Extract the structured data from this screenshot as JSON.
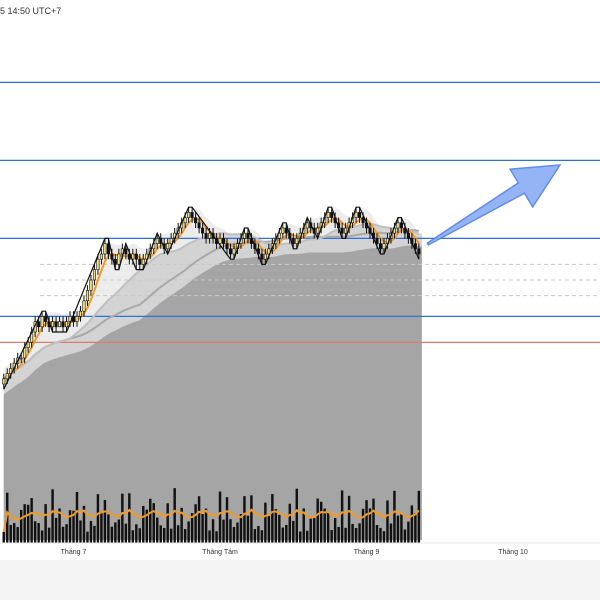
{
  "header": {
    "timestamp": "5 14:50 UTC+7"
  },
  "colors": {
    "background": "#ffffff",
    "level_line": "#2f6fd6",
    "support_line": "#e07a6a",
    "dashed_line": "#c8c8c8",
    "bull_candle": "#f3e37a",
    "bear_candle": "#111111",
    "ma_short": "#f29a27",
    "ma_long": "#a8a8a8",
    "ribbon_light": "#e6e6e6",
    "ribbon_dark": "#9a9a9a",
    "volume_bar": "#111111",
    "volume_ma": "#f29a27",
    "arrow_fill": "#8fb0f5",
    "arrow_stroke": "#5a87e6",
    "zigzag": "#111111"
  },
  "chart_data": {
    "type": "candlestick",
    "x_axis": {
      "ticks": [
        {
          "label": "Tháng 7",
          "index": 20
        },
        {
          "label": "Tháng Tám",
          "index": 62
        },
        {
          "label": "Tháng 9",
          "index": 104
        },
        {
          "label": "Tháng 10",
          "index": 146
        }
      ],
      "total_slots": 172
    },
    "y_range": [
      0,
      100
    ],
    "horizontal_levels": [
      {
        "kind": "level",
        "value": 88
      },
      {
        "kind": "level",
        "value": 73
      },
      {
        "kind": "level",
        "value": 58
      },
      {
        "kind": "level",
        "value": 43
      },
      {
        "kind": "support",
        "value": 38
      },
      {
        "kind": "dashed",
        "value": 53
      },
      {
        "kind": "dashed",
        "value": 50
      },
      {
        "kind": "dashed",
        "value": 47
      }
    ],
    "candles": [
      [
        30,
        31,
        32,
        29
      ],
      [
        31,
        32,
        33,
        30
      ],
      [
        32,
        33,
        34,
        31
      ],
      [
        33,
        34,
        35,
        32
      ],
      [
        34,
        35,
        36,
        33
      ],
      [
        35,
        35,
        36,
        34
      ],
      [
        35,
        37,
        38,
        34
      ],
      [
        37,
        38,
        39,
        36
      ],
      [
        38,
        40,
        41,
        37
      ],
      [
        40,
        42,
        43,
        39
      ],
      [
        42,
        41,
        43,
        40
      ],
      [
        41,
        43,
        44,
        40
      ],
      [
        43,
        42,
        44,
        41
      ],
      [
        42,
        41,
        43,
        40
      ],
      [
        41,
        42,
        43,
        40
      ],
      [
        42,
        41,
        43,
        40
      ],
      [
        41,
        42,
        43,
        41
      ],
      [
        42,
        41,
        43,
        40
      ],
      [
        41,
        42,
        43,
        40
      ],
      [
        42,
        43,
        44,
        41
      ],
      [
        43,
        42,
        44,
        41
      ],
      [
        42,
        43,
        44,
        41
      ],
      [
        43,
        44,
        45,
        42
      ],
      [
        44,
        46,
        47,
        43
      ],
      [
        46,
        48,
        49,
        45
      ],
      [
        48,
        50,
        51,
        47
      ],
      [
        50,
        52,
        53,
        49
      ],
      [
        52,
        54,
        55,
        51
      ],
      [
        54,
        55,
        56,
        53
      ],
      [
        55,
        57,
        58,
        54
      ],
      [
        57,
        55,
        58,
        54
      ],
      [
        55,
        54,
        56,
        53
      ],
      [
        54,
        53,
        55,
        52
      ],
      [
        53,
        55,
        56,
        52
      ],
      [
        55,
        56,
        57,
        54
      ],
      [
        56,
        55,
        57,
        54
      ],
      [
        55,
        54,
        56,
        53
      ],
      [
        54,
        55,
        56,
        53
      ],
      [
        55,
        54,
        56,
        52
      ],
      [
        54,
        53,
        55,
        52
      ],
      [
        53,
        54,
        55,
        52
      ],
      [
        54,
        55,
        56,
        53
      ],
      [
        55,
        56,
        57,
        54
      ],
      [
        56,
        57,
        58,
        55
      ],
      [
        57,
        58,
        59,
        56
      ],
      [
        58,
        57,
        59,
        56
      ],
      [
        57,
        56,
        58,
        55
      ],
      [
        56,
        57,
        58,
        55
      ],
      [
        57,
        58,
        59,
        56
      ],
      [
        58,
        59,
        60,
        57
      ],
      [
        59,
        60,
        61,
        58
      ],
      [
        60,
        61,
        62,
        59
      ],
      [
        61,
        62,
        63,
        60
      ],
      [
        62,
        63,
        64,
        61
      ],
      [
        63,
        62,
        64,
        61
      ],
      [
        62,
        61,
        63,
        60
      ],
      [
        61,
        60,
        62,
        59
      ],
      [
        60,
        59,
        61,
        58
      ],
      [
        59,
        58,
        60,
        57
      ],
      [
        58,
        59,
        60,
        57
      ],
      [
        59,
        58,
        60,
        57
      ],
      [
        58,
        57,
        59,
        56
      ],
      [
        57,
        58,
        59,
        56
      ],
      [
        58,
        57,
        59,
        56
      ],
      [
        57,
        56,
        58,
        55
      ],
      [
        56,
        55,
        57,
        54
      ],
      [
        55,
        56,
        57,
        54
      ],
      [
        56,
        57,
        58,
        55
      ],
      [
        57,
        58,
        59,
        56
      ],
      [
        58,
        59,
        60,
        57
      ],
      [
        59,
        58,
        60,
        57
      ],
      [
        58,
        57,
        59,
        56
      ],
      [
        57,
        56,
        58,
        55
      ],
      [
        56,
        55,
        57,
        54
      ],
      [
        55,
        54,
        56,
        53
      ],
      [
        54,
        55,
        56,
        53
      ],
      [
        55,
        56,
        57,
        54
      ],
      [
        56,
        57,
        58,
        55
      ],
      [
        57,
        58,
        59,
        56
      ],
      [
        58,
        59,
        60,
        57
      ],
      [
        59,
        60,
        61,
        58
      ],
      [
        60,
        59,
        61,
        58
      ],
      [
        59,
        58,
        60,
        57
      ],
      [
        58,
        57,
        59,
        56
      ],
      [
        57,
        58,
        59,
        56
      ],
      [
        58,
        59,
        60,
        57
      ],
      [
        59,
        60,
        61,
        58
      ],
      [
        60,
        61,
        62,
        59
      ],
      [
        61,
        60,
        62,
        59
      ],
      [
        60,
        59,
        61,
        58
      ],
      [
        59,
        60,
        61,
        58
      ],
      [
        60,
        61,
        62,
        59
      ],
      [
        61,
        62,
        63,
        60
      ],
      [
        62,
        63,
        64,
        61
      ],
      [
        63,
        62,
        64,
        61
      ],
      [
        62,
        61,
        63,
        60
      ],
      [
        61,
        60,
        62,
        59
      ],
      [
        60,
        59,
        61,
        58
      ],
      [
        59,
        60,
        61,
        58
      ],
      [
        60,
        61,
        62,
        59
      ],
      [
        61,
        62,
        63,
        60
      ],
      [
        62,
        63,
        64,
        61
      ],
      [
        63,
        62,
        64,
        61
      ],
      [
        62,
        61,
        63,
        60
      ],
      [
        61,
        60,
        62,
        59
      ],
      [
        60,
        59,
        61,
        58
      ],
      [
        59,
        58,
        60,
        57
      ],
      [
        58,
        57,
        59,
        56
      ],
      [
        57,
        56,
        58,
        55
      ],
      [
        56,
        57,
        58,
        55
      ],
      [
        57,
        58,
        59,
        56
      ],
      [
        58,
        59,
        60,
        57
      ],
      [
        59,
        60,
        61,
        58
      ],
      [
        60,
        61,
        62,
        59
      ],
      [
        61,
        60,
        62,
        59
      ],
      [
        60,
        59,
        61,
        58
      ],
      [
        59,
        58,
        60,
        57
      ],
      [
        58,
        57,
        59,
        56
      ],
      [
        57,
        56,
        58,
        55
      ],
      [
        56,
        55,
        57,
        54
      ]
    ]
  }
}
